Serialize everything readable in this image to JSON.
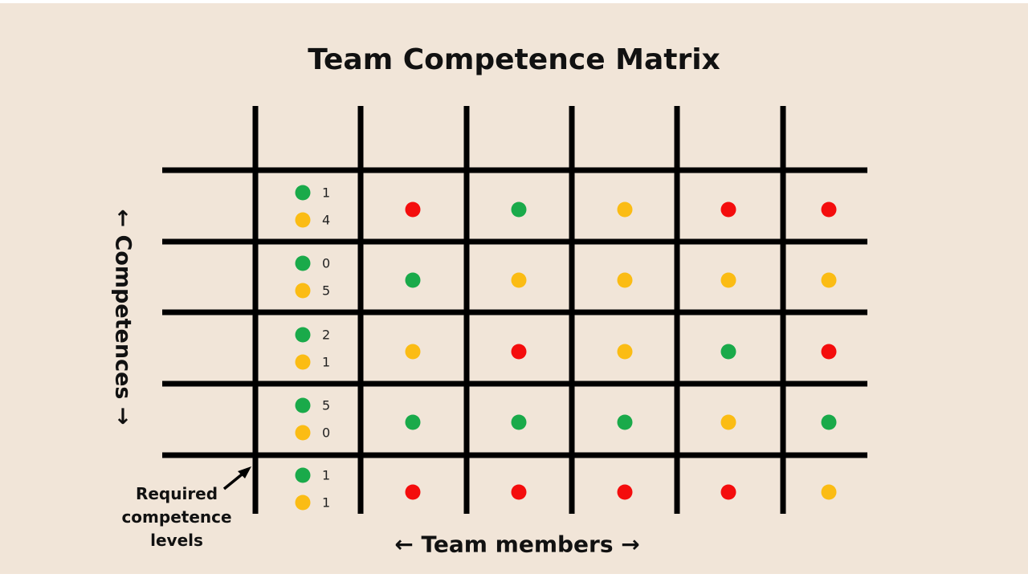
{
  "title": "Team Competence Matrix",
  "axes": {
    "vertical_label": "← Competences →",
    "horizontal_label": "← Team members →"
  },
  "required_label": [
    "Required",
    "competence",
    "levels"
  ],
  "colors": {
    "background": "#f1e5d8",
    "lines": "#000000",
    "green": "#1aaa4a",
    "yellow": "#fbbc14",
    "red": "#f40d0d"
  },
  "legend_icons": [
    "green-dot-icon",
    "yellow-dot-icon",
    "red-dot-icon"
  ],
  "rows": [
    {
      "required_green": "1",
      "required_yellow": "4",
      "members": [
        "red",
        "green",
        "yellow",
        "red",
        "red"
      ]
    },
    {
      "required_green": "0",
      "required_yellow": "5",
      "members": [
        "green",
        "yellow",
        "yellow",
        "yellow",
        "yellow"
      ]
    },
    {
      "required_green": "2",
      "required_yellow": "1",
      "members": [
        "yellow",
        "red",
        "yellow",
        "green",
        "red"
      ]
    },
    {
      "required_green": "5",
      "required_yellow": "0",
      "members": [
        "green",
        "green",
        "green",
        "yellow",
        "green"
      ]
    },
    {
      "required_green": "1",
      "required_yellow": "1",
      "members": [
        "red",
        "red",
        "red",
        "red",
        "yellow"
      ]
    }
  ]
}
